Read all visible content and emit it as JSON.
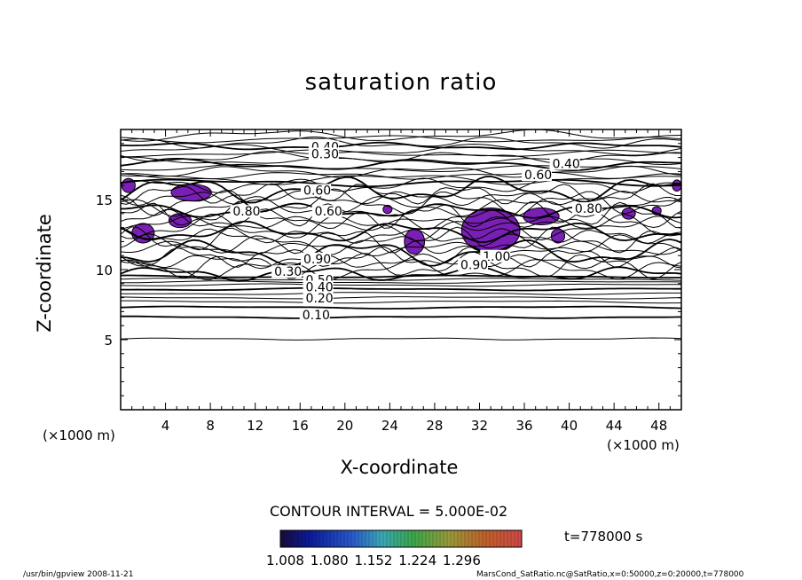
{
  "chart_data": {
    "type": "contour",
    "title": "saturation ratio",
    "xlabel": "X-coordinate",
    "ylabel": "Z-coordinate",
    "x_unit": "(×1000 m)",
    "y_unit": "(×1000 m)",
    "xlim": [
      0,
      50
    ],
    "ylim": [
      0,
      20
    ],
    "x_ticks": [
      "4",
      "8",
      "12",
      "16",
      "20",
      "24",
      "28",
      "32",
      "36",
      "40",
      "44",
      "48"
    ],
    "y_ticks": [
      "5",
      "10",
      "15"
    ],
    "contour_interval_label": "CONTOUR INTERVAL = 5.000E-02",
    "time_label": "t=778000 s",
    "colorbar_ticks": [
      "1.008",
      "1.080",
      "1.152",
      "1.224",
      "1.296"
    ],
    "colorbar_range": [
      1.008,
      1.3
    ],
    "contour_labels": [
      {
        "text": "0.40",
        "x": 17,
        "z": 18.7
      },
      {
        "text": "0.30",
        "x": 17,
        "z": 18.2
      },
      {
        "text": "0.40",
        "x": 38.5,
        "z": 17.5
      },
      {
        "text": "0.60",
        "x": 36,
        "z": 16.7
      },
      {
        "text": "0.60",
        "x": 16.3,
        "z": 15.6
      },
      {
        "text": "0.80",
        "x": 10,
        "z": 14.1
      },
      {
        "text": "0.60",
        "x": 17.3,
        "z": 14.1
      },
      {
        "text": "0.80",
        "x": 40.5,
        "z": 14.3
      },
      {
        "text": "0.90",
        "x": 16.3,
        "z": 10.7
      },
      {
        "text": "0.30",
        "x": 13.7,
        "z": 9.8
      },
      {
        "text": "1.00",
        "x": 32.3,
        "z": 10.9
      },
      {
        "text": "0.90",
        "x": 30.3,
        "z": 10.3
      },
      {
        "text": "0.50",
        "x": 16.5,
        "z": 9.2
      },
      {
        "text": "0.40",
        "x": 16.5,
        "z": 8.7
      },
      {
        "text": "0.20",
        "x": 16.5,
        "z": 7.9
      },
      {
        "text": "0.10",
        "x": 16.2,
        "z": 6.7
      }
    ],
    "fill_colors": {
      "supersaturated": "#7a1fb5",
      "line": "#000000"
    }
  },
  "footer": {
    "left": "/usr/bin/gpview   2008-11-21",
    "right": "MarsCond_SatRatio.nc@SatRatio,x=0:50000,z=0:20000,t=778000"
  }
}
